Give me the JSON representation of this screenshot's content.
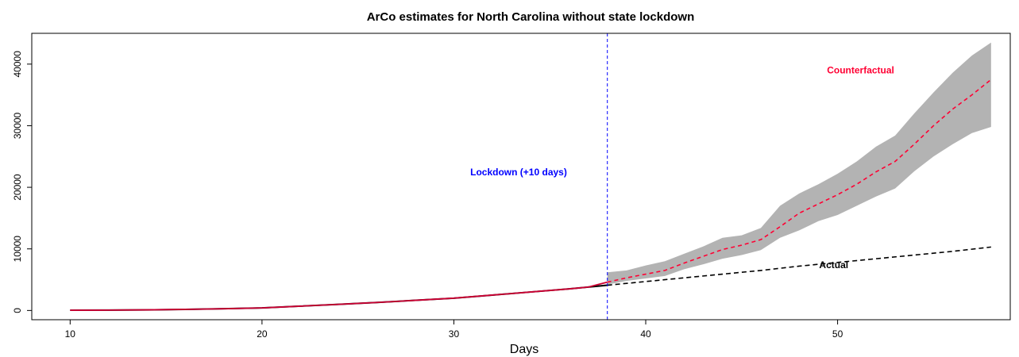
{
  "chart_data": {
    "type": "line",
    "title": "ArCo estimates for North Carolina without state lockdown",
    "xlabel": "Days",
    "ylabel": "",
    "xlim": [
      8,
      59
    ],
    "ylim": [
      -1500,
      45000
    ],
    "x_ticks": [
      10,
      20,
      30,
      40,
      50
    ],
    "y_ticks": [
      0,
      10000,
      20000,
      30000,
      40000
    ],
    "grid": false,
    "colors": {
      "actual": "#000000",
      "counterfactual": "#ff0033",
      "band": "#b3b3b3",
      "lockdown": "#0000ff",
      "pre_counterfactual": "#cc0033"
    },
    "lockdown": {
      "x": 38,
      "label": "Lockdown (+10 days)"
    },
    "annotations": [
      {
        "text": "Counterfactual",
        "x": 51.2,
        "y": 39000,
        "color": "#ff0033"
      },
      {
        "text": "Actual",
        "x": 49.8,
        "y": 7400,
        "color": "#000000"
      }
    ],
    "series": [
      {
        "name": "Actual",
        "x": [
          10,
          12,
          14,
          16,
          18,
          20,
          22,
          24,
          26,
          28,
          30,
          32,
          34,
          36,
          37,
          38,
          40,
          42,
          44,
          46,
          48,
          50,
          52,
          54,
          56,
          58
        ],
        "values": [
          40,
          60,
          100,
          180,
          280,
          420,
          700,
          1000,
          1300,
          1650,
          2000,
          2500,
          3000,
          3500,
          3800,
          4100,
          4700,
          5300,
          5900,
          6500,
          7200,
          7800,
          8400,
          9000,
          9600,
          10300
        ]
      },
      {
        "name": "Counterfactual",
        "x": [
          38,
          39,
          40,
          41,
          42,
          43,
          44,
          45,
          46,
          47,
          48,
          49,
          50,
          51,
          52,
          53,
          54,
          55,
          56,
          57,
          58
        ],
        "values": [
          4600,
          5300,
          5900,
          6500,
          7700,
          8800,
          9900,
          10600,
          11500,
          13600,
          15800,
          17300,
          18800,
          20500,
          22500,
          24200,
          27000,
          30000,
          32700,
          35000,
          37500
        ],
        "band_upper": [
          6200,
          6500,
          7300,
          8000,
          9200,
          10400,
          11800,
          12200,
          13400,
          17000,
          19000,
          20500,
          22200,
          24200,
          26600,
          28400,
          32000,
          35400,
          38600,
          41400,
          43500
        ],
        "band_lower": [
          4200,
          4800,
          5200,
          5600,
          6700,
          7500,
          8400,
          9000,
          9800,
          11800,
          13000,
          14500,
          15500,
          17000,
          18500,
          19800,
          22600,
          25000,
          27000,
          28800,
          29800
        ]
      }
    ],
    "pre_period": {
      "x": [
        10,
        12,
        14,
        16,
        18,
        20,
        22,
        24,
        26,
        28,
        30,
        32,
        34,
        36,
        37,
        38
      ],
      "values": [
        40,
        60,
        100,
        180,
        280,
        420,
        700,
        1000,
        1300,
        1650,
        2000,
        2500,
        3000,
        3500,
        3800,
        4600
      ]
    }
  }
}
